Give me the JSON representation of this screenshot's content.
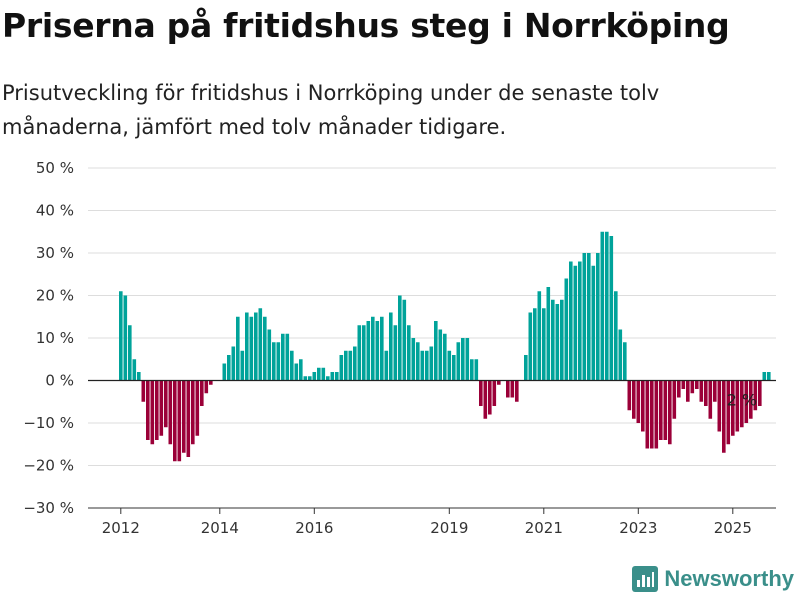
{
  "header": {
    "title": "Priserna på fritidshus steg i Norrköping",
    "subtitle": "Prisutveckling för fritidshus i Norrköping under de senaste tolv månaderna, jämfört med tolv månader tidigare."
  },
  "brand": {
    "name": "Newsworthy",
    "icon": "bar-chart-logo-icon",
    "color": "#3a8f8a"
  },
  "chart_data": {
    "type": "bar",
    "ylim": [
      -30,
      50
    ],
    "yticks": [
      50,
      40,
      30,
      20,
      10,
      0,
      -10,
      -20,
      -30
    ],
    "ytick_labels": [
      "50 %",
      "40 %",
      "30 %",
      "20 %",
      "10 %",
      "0 %",
      "−10 %",
      "−20 %",
      "−30 %"
    ],
    "xtick_labels": [
      "2012",
      "2014",
      "2016",
      "2019",
      "2021",
      "2023",
      "2025"
    ],
    "xtick_index": [
      0,
      22,
      43,
      73,
      94,
      115,
      136
    ],
    "grid": true,
    "colors": {
      "positive": "#00a39a",
      "negative": "#9b0038",
      "grid": "#dddddd",
      "zero": "#222222"
    },
    "annotation": {
      "text": "2 %",
      "index": 138
    },
    "values": [
      21,
      20,
      13,
      5,
      2,
      -5,
      -14,
      -15,
      -14,
      -13,
      -11,
      -15,
      -19,
      -19,
      -17,
      -18,
      -15,
      -13,
      -6,
      -3,
      -1,
      0,
      0,
      4,
      6,
      8,
      15,
      7,
      16,
      15,
      16,
      17,
      15,
      12,
      9,
      9,
      11,
      11,
      7,
      4,
      5,
      1,
      1,
      2,
      3,
      3,
      1,
      2,
      2,
      6,
      7,
      7,
      8,
      13,
      13,
      14,
      15,
      14,
      15,
      7,
      16,
      13,
      20,
      19,
      13,
      10,
      9,
      7,
      7,
      8,
      14,
      12,
      11,
      7,
      6,
      9,
      10,
      10,
      5,
      5,
      -6,
      -9,
      -8,
      -6,
      -1,
      0,
      -4,
      -4,
      -5,
      0,
      6,
      16,
      17,
      21,
      17,
      22,
      19,
      18,
      19,
      24,
      28,
      27,
      28,
      30,
      30,
      27,
      30,
      35,
      35,
      34,
      21,
      12,
      9,
      -7,
      -9,
      -10,
      -12,
      -16,
      -16,
      -16,
      -14,
      -14,
      -15,
      -9,
      -4,
      -2,
      -5,
      -3,
      -2,
      -5,
      -6,
      -9,
      -5,
      -12,
      -17,
      -15,
      -13,
      -12,
      -11,
      -10,
      -9,
      -7,
      -6,
      2,
      2
    ]
  }
}
